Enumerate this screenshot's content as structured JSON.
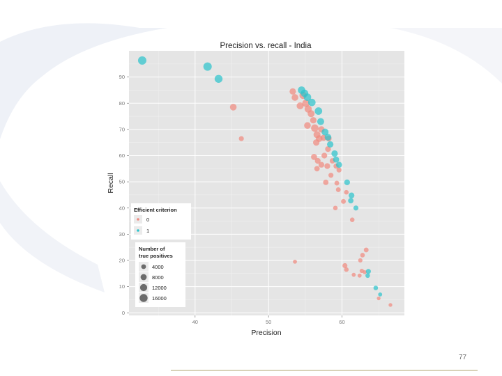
{
  "slide": {
    "page_number": "77"
  },
  "colors": {
    "panel_bg": "#e5e5e5",
    "grid": "#ffffff",
    "criterion_0": "#f08a80",
    "criterion_1": "#2ec4cc",
    "size_legend": "#6b6b6b"
  },
  "chart_data": {
    "type": "scatter",
    "title": "Precision vs. recall - India",
    "xlabel": "Precision",
    "ylabel": "Recall",
    "xlim": [
      31,
      68.5
    ],
    "ylim": [
      -1,
      100
    ],
    "x_ticks": [
      40,
      50,
      60
    ],
    "y_ticks": [
      0,
      10,
      20,
      30,
      40,
      50,
      60,
      70,
      80,
      90
    ],
    "legend_color": {
      "title": "Efficient criterion",
      "entries": [
        {
          "label": "0",
          "color": "#f08a80"
        },
        {
          "label": "1",
          "color": "#2ec4cc"
        }
      ]
    },
    "legend_size": {
      "title": [
        "Number of",
        "true positives"
      ],
      "entries": [
        {
          "label": "4000",
          "value": 4000
        },
        {
          "label": "8000",
          "value": 8000
        },
        {
          "label": "12000",
          "value": 12000
        },
        {
          "label": "16000",
          "value": 16000
        }
      ]
    },
    "series": [
      {
        "name": "0",
        "points": [
          {
            "x": 46.3,
            "y": 66.5,
            "tp": 4000
          },
          {
            "x": 45.2,
            "y": 78.5,
            "tp": 9000
          },
          {
            "x": 53.3,
            "y": 84.5,
            "tp": 8000
          },
          {
            "x": 53.6,
            "y": 82.2,
            "tp": 9000
          },
          {
            "x": 54.3,
            "y": 79,
            "tp": 10000
          },
          {
            "x": 54.7,
            "y": 83,
            "tp": 11000
          },
          {
            "x": 55.1,
            "y": 80,
            "tp": 12000
          },
          {
            "x": 55.4,
            "y": 77.8,
            "tp": 11000
          },
          {
            "x": 55.8,
            "y": 76,
            "tp": 10000
          },
          {
            "x": 55.3,
            "y": 71.5,
            "tp": 9000
          },
          {
            "x": 56.1,
            "y": 73.5,
            "tp": 8000
          },
          {
            "x": 56.3,
            "y": 70.5,
            "tp": 12000
          },
          {
            "x": 56.6,
            "y": 68,
            "tp": 10000
          },
          {
            "x": 56.9,
            "y": 66.5,
            "tp": 9000
          },
          {
            "x": 56.5,
            "y": 65,
            "tp": 8000
          },
          {
            "x": 57.2,
            "y": 70,
            "tp": 8000
          },
          {
            "x": 57.5,
            "y": 66.8,
            "tp": 7000
          },
          {
            "x": 58.2,
            "y": 66.5,
            "tp": 6000
          },
          {
            "x": 58.1,
            "y": 62.5,
            "tp": 6000
          },
          {
            "x": 56.2,
            "y": 59.5,
            "tp": 7000
          },
          {
            "x": 56.7,
            "y": 58,
            "tp": 6000
          },
          {
            "x": 57.2,
            "y": 56.5,
            "tp": 6000
          },
          {
            "x": 56.6,
            "y": 55,
            "tp": 5000
          },
          {
            "x": 57.6,
            "y": 60,
            "tp": 6000
          },
          {
            "x": 58.0,
            "y": 56,
            "tp": 6000
          },
          {
            "x": 58.7,
            "y": 58,
            "tp": 5000
          },
          {
            "x": 59.2,
            "y": 56,
            "tp": 4500
          },
          {
            "x": 59.6,
            "y": 54.5,
            "tp": 4000
          },
          {
            "x": 58.5,
            "y": 52.5,
            "tp": 4000
          },
          {
            "x": 59.3,
            "y": 49.5,
            "tp": 3500
          },
          {
            "x": 57.8,
            "y": 49.8,
            "tp": 5000
          },
          {
            "x": 59.5,
            "y": 47,
            "tp": 3500
          },
          {
            "x": 60.2,
            "y": 42.5,
            "tp": 3500
          },
          {
            "x": 59.1,
            "y": 40,
            "tp": 3000
          },
          {
            "x": 60.6,
            "y": 46,
            "tp": 3000
          },
          {
            "x": 61.4,
            "y": 35.5,
            "tp": 3000
          },
          {
            "x": 63.3,
            "y": 24,
            "tp": 3500
          },
          {
            "x": 62.8,
            "y": 22,
            "tp": 3000
          },
          {
            "x": 60.4,
            "y": 18,
            "tp": 4000
          },
          {
            "x": 60.6,
            "y": 16.5,
            "tp": 3000
          },
          {
            "x": 62.5,
            "y": 20,
            "tp": 2500
          },
          {
            "x": 62.7,
            "y": 16,
            "tp": 2500
          },
          {
            "x": 63.1,
            "y": 15.5,
            "tp": 2000
          },
          {
            "x": 61.6,
            "y": 14.5,
            "tp": 2000
          },
          {
            "x": 62.4,
            "y": 14.2,
            "tp": 2000
          },
          {
            "x": 53.6,
            "y": 19.5,
            "tp": 2000
          },
          {
            "x": 66.6,
            "y": 3,
            "tp": 1500
          },
          {
            "x": 65.0,
            "y": 5.5,
            "tp": 1500
          }
        ]
      },
      {
        "name": "1",
        "points": [
          {
            "x": 32.8,
            "y": 96.3,
            "tp": 16000
          },
          {
            "x": 41.7,
            "y": 94,
            "tp": 16000
          },
          {
            "x": 43.2,
            "y": 89.3,
            "tp": 14000
          },
          {
            "x": 54.5,
            "y": 85,
            "tp": 12000
          },
          {
            "x": 54.9,
            "y": 83.8,
            "tp": 12000
          },
          {
            "x": 55.3,
            "y": 82.3,
            "tp": 12000
          },
          {
            "x": 55.9,
            "y": 80.3,
            "tp": 12000
          },
          {
            "x": 56.8,
            "y": 77,
            "tp": 12000
          },
          {
            "x": 57.1,
            "y": 73,
            "tp": 10000
          },
          {
            "x": 57.7,
            "y": 69,
            "tp": 10000
          },
          {
            "x": 58.1,
            "y": 67,
            "tp": 9000
          },
          {
            "x": 58.4,
            "y": 64.3,
            "tp": 8000
          },
          {
            "x": 59.0,
            "y": 60.8,
            "tp": 8000
          },
          {
            "x": 59.2,
            "y": 58.5,
            "tp": 7000
          },
          {
            "x": 59.6,
            "y": 56.5,
            "tp": 7000
          },
          {
            "x": 60.7,
            "y": 49.8,
            "tp": 6000
          },
          {
            "x": 61.3,
            "y": 44.8,
            "tp": 6000
          },
          {
            "x": 61.2,
            "y": 42.8,
            "tp": 5000
          },
          {
            "x": 61.9,
            "y": 40,
            "tp": 4000
          },
          {
            "x": 63.6,
            "y": 15.8,
            "tp": 4000
          },
          {
            "x": 63.5,
            "y": 14.2,
            "tp": 3000
          },
          {
            "x": 64.6,
            "y": 9.5,
            "tp": 3000
          },
          {
            "x": 65.2,
            "y": 7,
            "tp": 2000
          }
        ]
      }
    ]
  }
}
